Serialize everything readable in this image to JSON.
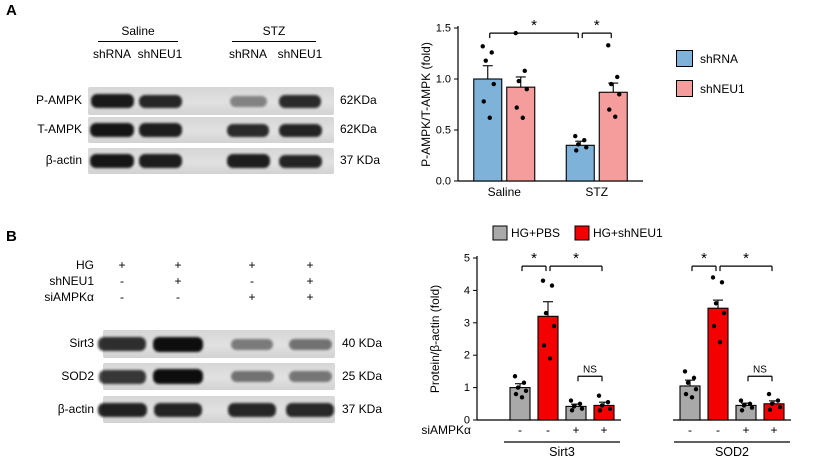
{
  "panel_a": {
    "label": "A",
    "blot": {
      "group_headers": [
        "Saline",
        "STZ"
      ],
      "lane_labels": [
        "shRNA",
        "shNEU1",
        "shRNA",
        "shNEU1"
      ],
      "rows": [
        {
          "label": "P-AMPK",
          "kda": "62KDa",
          "bands": [
            0.92,
            0.85,
            0.3,
            0.82
          ]
        },
        {
          "label": "T-AMPK",
          "kda": "62KDa",
          "bands": [
            0.95,
            0.9,
            0.82,
            0.86
          ]
        },
        {
          "label": "β-actin",
          "kda": "37 KDa",
          "bands": [
            0.95,
            0.9,
            0.9,
            0.86
          ]
        }
      ]
    }
  },
  "panel_b": {
    "label": "B",
    "conditions": [
      {
        "label": "HG",
        "values": [
          "+",
          "+",
          "+",
          "+"
        ]
      },
      {
        "label": "shNEU1",
        "values": [
          "-",
          "+",
          "-",
          "+"
        ]
      },
      {
        "label": "siAMPKα",
        "values": [
          "-",
          "-",
          "+",
          "+"
        ]
      }
    ],
    "blot": {
      "rows": [
        {
          "label": "Sirt3",
          "kda": "40 KDa",
          "bands": [
            0.8,
            1.0,
            0.35,
            0.4
          ]
        },
        {
          "label": "SOD2",
          "kda": "25 KDa",
          "bands": [
            0.75,
            1.0,
            0.4,
            0.38
          ]
        },
        {
          "label": "β-actin",
          "kda": "37 KDa",
          "bands": [
            0.88,
            0.86,
            0.85,
            0.84
          ]
        }
      ]
    }
  },
  "chart_data": [
    {
      "type": "bar",
      "title": "",
      "ylabel": "P-AMPK/T-AMPK (fold)",
      "ylim": [
        0,
        1.5
      ],
      "yticks": [
        "0.0",
        "0.5",
        "1.0",
        "1.5"
      ],
      "categories": [
        "Saline",
        "STZ"
      ],
      "series": [
        {
          "name": "shRNA",
          "color": "#7FB2D8",
          "values": [
            1.0,
            0.35
          ],
          "errors": [
            0.13,
            0.04
          ],
          "points": [
            [
              1.32,
              1.26,
              1.18,
              0.95,
              0.78,
              0.62
            ],
            [
              0.44,
              0.4,
              0.36,
              0.33,
              0.3
            ]
          ]
        },
        {
          "name": "shNEU1",
          "color": "#F59D9D",
          "values": [
            0.92,
            0.87
          ],
          "errors": [
            0.1,
            0.09
          ],
          "points": [
            [
              1.45,
              1.08,
              0.98,
              0.9,
              0.72,
              0.62
            ],
            [
              1.33,
              1.02,
              0.95,
              0.85,
              0.7,
              0.63
            ]
          ]
        }
      ],
      "significance": [
        {
          "a": [
            0,
            0
          ],
          "b": [
            1,
            0
          ],
          "y": 1.45,
          "label": "*"
        },
        {
          "a": [
            1,
            0
          ],
          "b": [
            1,
            1
          ],
          "y": 1.45,
          "label": "*"
        }
      ],
      "legend_position": "right",
      "grid": false
    },
    {
      "type": "bar",
      "title": "",
      "ylabel": "Protein/β-actin (fold)",
      "ylim": [
        0,
        5
      ],
      "yticks": [
        "0",
        "1",
        "2",
        "3",
        "4",
        "5"
      ],
      "categories": [
        "Sirt3",
        "SOD2"
      ],
      "legend": [
        {
          "name": "HG+PBS",
          "color": "#A9A9A9"
        },
        {
          "name": "HG+shNEU1",
          "color": "#F40000"
        }
      ],
      "x_condition_label": "siAMPKα",
      "bars_per_group": [
        {
          "series": 0,
          "sign": "-"
        },
        {
          "series": 1,
          "sign": "-"
        },
        {
          "series": 0,
          "sign": "+"
        },
        {
          "series": 1,
          "sign": "+"
        }
      ],
      "groups": [
        {
          "name": "Sirt3",
          "values": [
            1.0,
            3.2,
            0.42,
            0.45
          ],
          "errors": [
            0.12,
            0.45,
            0.07,
            0.1
          ],
          "points": [
            [
              1.35,
              1.15,
              1.0,
              0.9,
              0.8,
              0.7
            ],
            [
              4.3,
              4.15,
              3.3,
              2.9,
              2.3,
              1.9
            ],
            [
              0.6,
              0.5,
              0.42,
              0.35,
              0.3
            ],
            [
              0.75,
              0.55,
              0.45,
              0.35,
              0.3
            ]
          ]
        },
        {
          "name": "SOD2",
          "values": [
            1.05,
            3.45,
            0.45,
            0.5
          ],
          "errors": [
            0.18,
            0.25,
            0.07,
            0.09
          ],
          "points": [
            [
              1.5,
              1.3,
              1.15,
              0.95,
              0.8,
              0.7
            ],
            [
              4.4,
              4.25,
              3.6,
              3.3,
              2.9,
              2.4
            ],
            [
              0.6,
              0.5,
              0.45,
              0.38,
              0.3
            ],
            [
              0.8,
              0.6,
              0.5,
              0.4,
              0.32
            ]
          ]
        }
      ],
      "significance": [
        {
          "group": 0,
          "a": 0,
          "b": 1,
          "y": 4.75,
          "label": "*"
        },
        {
          "group": 0,
          "a": 1,
          "b": 3,
          "y": 4.75,
          "label": "*"
        },
        {
          "group": 0,
          "a": 2,
          "b": 3,
          "y": 1.35,
          "label": "NS"
        },
        {
          "group": 1,
          "a": 0,
          "b": 1,
          "y": 4.75,
          "label": "*"
        },
        {
          "group": 1,
          "a": 1,
          "b": 3,
          "y": 4.75,
          "label": "*"
        },
        {
          "group": 1,
          "a": 2,
          "b": 3,
          "y": 1.35,
          "label": "NS"
        }
      ],
      "grid": false
    }
  ]
}
